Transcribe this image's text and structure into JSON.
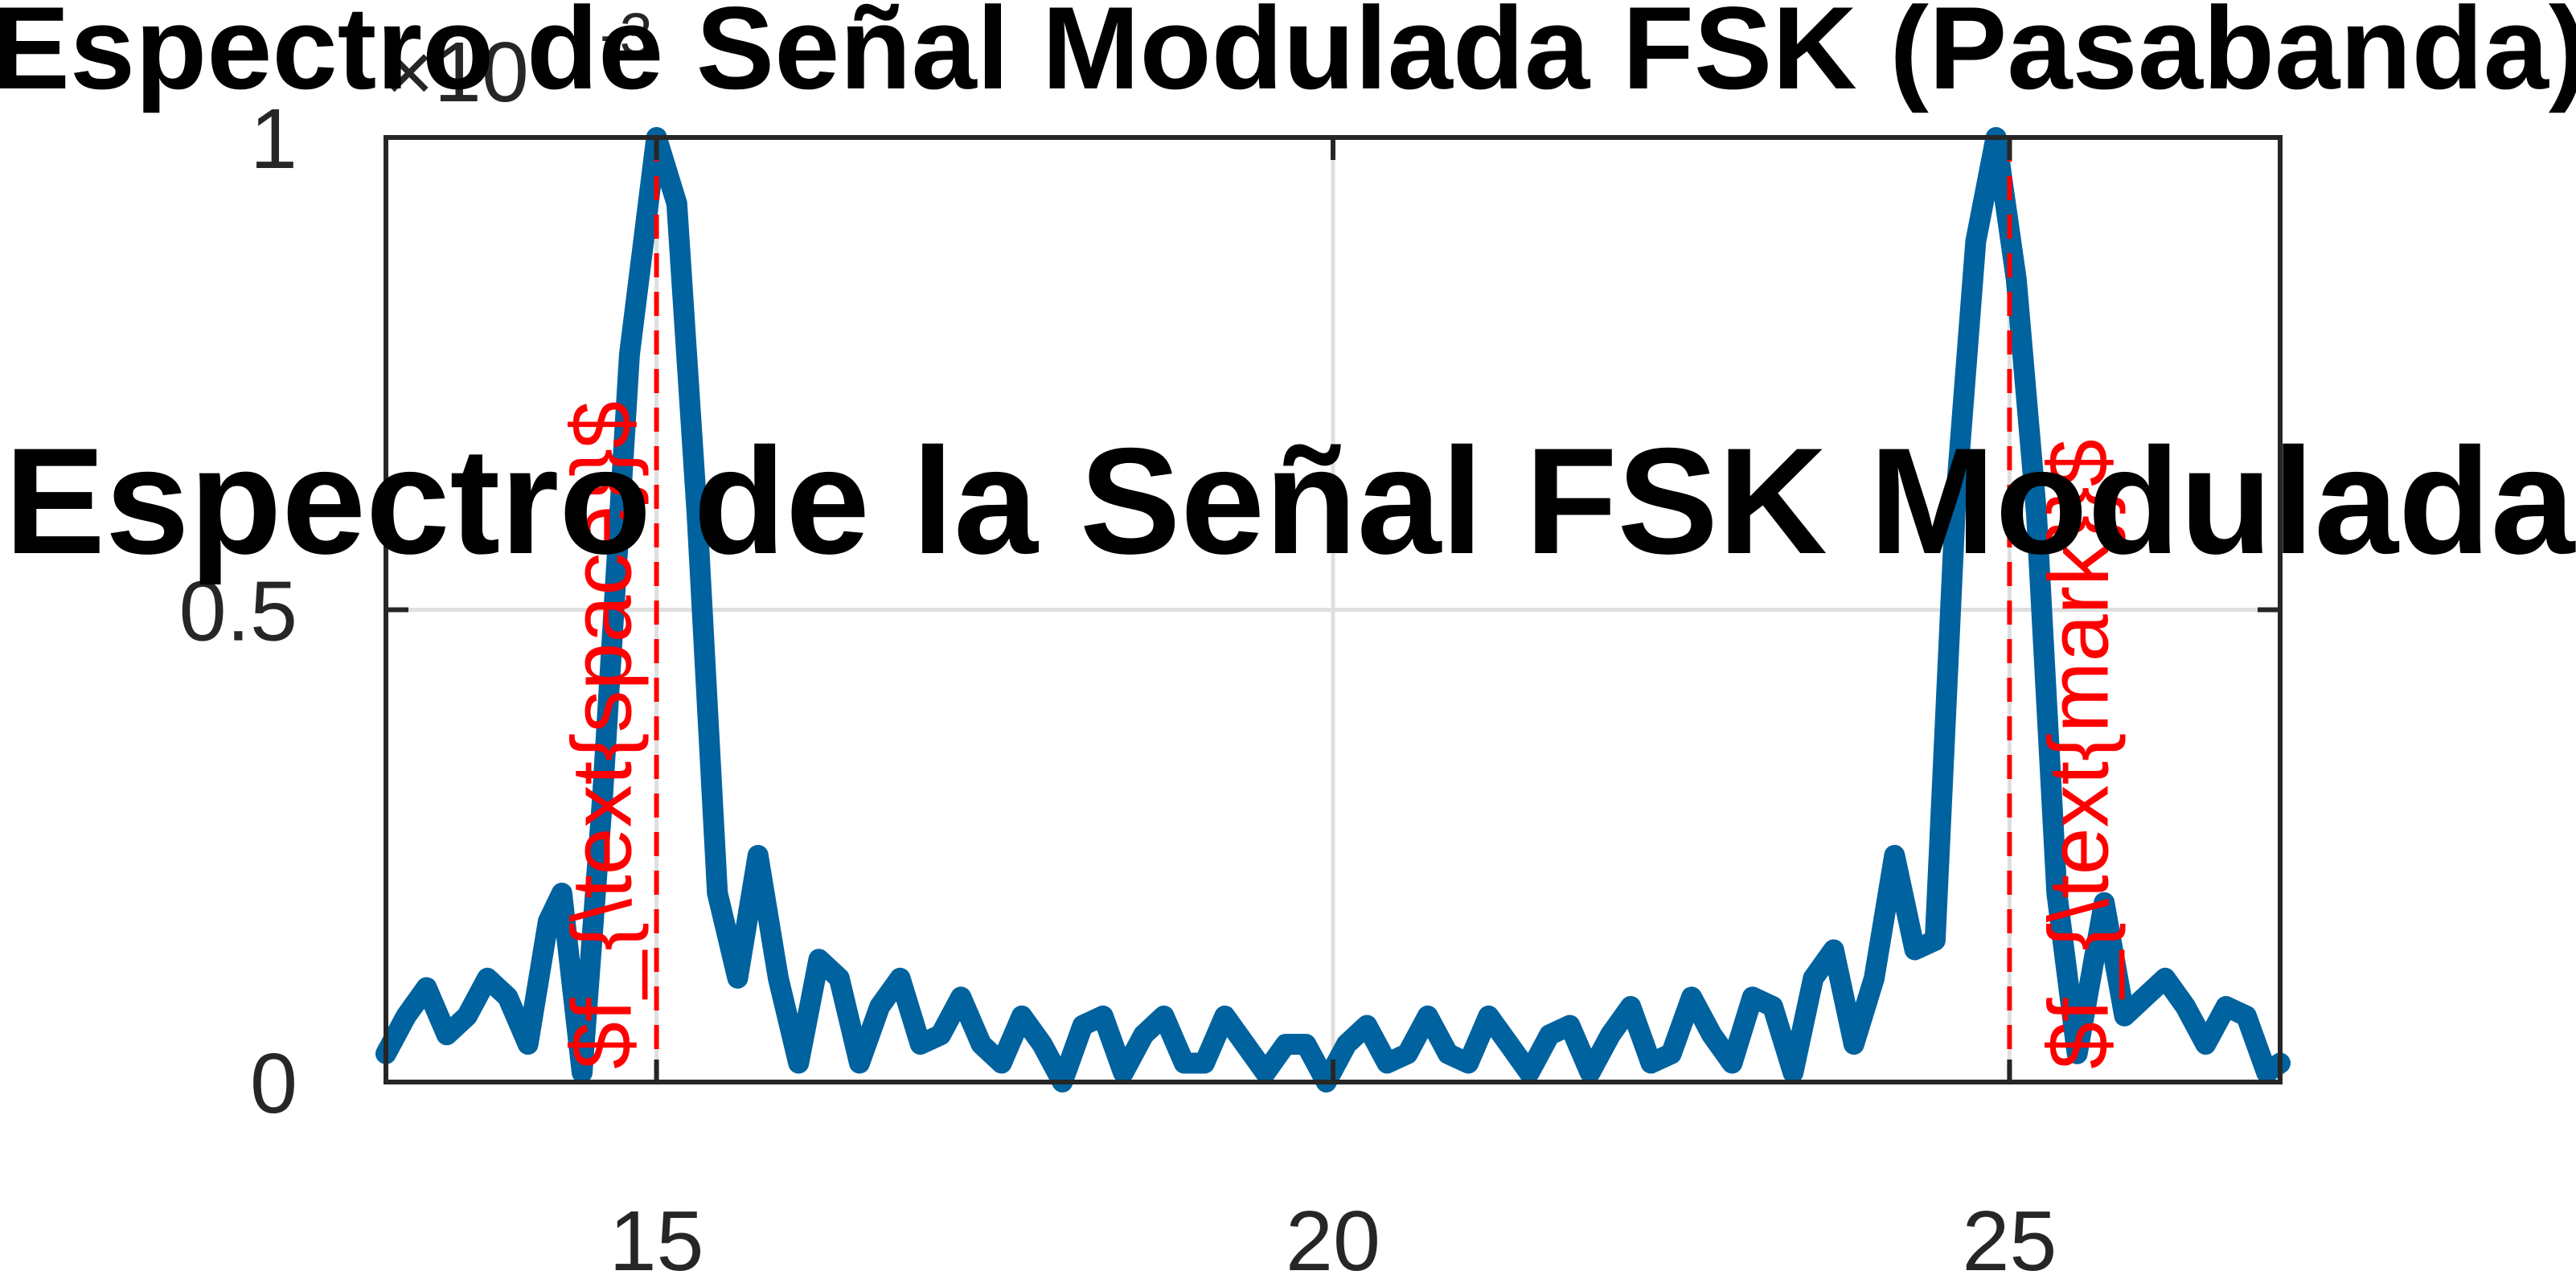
{
  "chart_data": {
    "type": "line",
    "title": "Espectro de Señal Modulada FSK (Pasabanda)",
    "overlay_title": "Espectro de la Señal FSK Modulada",
    "xlabel": "",
    "ylabel": "",
    "xlim": [
      13,
      27
    ],
    "ylim": [
      0,
      0.001
    ],
    "y_exponent_label": "×10",
    "y_exponent_power": "-3",
    "xticks": [
      15,
      20,
      25
    ],
    "xtick_labels": [
      "15",
      "20",
      "25"
    ],
    "yticks": [
      0,
      0.0005,
      0.001
    ],
    "ytick_labels": [
      "0",
      "0.5",
      "1"
    ],
    "grid": true,
    "series": [
      {
        "color": "#00629e",
        "x": [
          13.0,
          13.15,
          13.3,
          13.45,
          13.6,
          13.75,
          13.9,
          14.05,
          14.2,
          14.3,
          14.45,
          14.6,
          14.8,
          15.0,
          15.15,
          15.3,
          15.45,
          15.6,
          15.75,
          15.9,
          16.05,
          16.2,
          16.35,
          16.5,
          16.65,
          16.8,
          16.95,
          17.1,
          17.25,
          17.4,
          17.55,
          17.7,
          17.85,
          18.0,
          18.15,
          18.3,
          18.45,
          18.6,
          18.75,
          18.9,
          19.05,
          19.2,
          19.35,
          19.5,
          19.65,
          19.8,
          19.95,
          20.1,
          20.25,
          20.4,
          20.55,
          20.7,
          20.85,
          21.0,
          21.15,
          21.3,
          21.45,
          21.6,
          21.75,
          21.9,
          22.05,
          22.2,
          22.35,
          22.5,
          22.65,
          22.8,
          22.95,
          23.1,
          23.25,
          23.4,
          23.55,
          23.7,
          23.85,
          24.0,
          24.15,
          24.3,
          24.45,
          24.6,
          24.75,
          24.9,
          25.05,
          25.2,
          25.35,
          25.5,
          25.7,
          25.85,
          26.0,
          26.15,
          26.3,
          26.45,
          26.6,
          26.75,
          26.9,
          27.0
        ],
        "y": [
          3e-05,
          7e-05,
          0.0001,
          5e-05,
          7e-05,
          0.00011,
          9e-05,
          4e-05,
          0.00017,
          0.0002,
          1e-05,
          0.0003,
          0.00077,
          0.001,
          0.00093,
          0.0006,
          0.0002,
          0.00011,
          0.00024,
          0.00011,
          2e-05,
          0.00013,
          0.00011,
          2e-05,
          8e-05,
          0.00011,
          4e-05,
          5e-05,
          9e-05,
          4e-05,
          2e-05,
          7e-05,
          4e-05,
          0.0,
          6e-05,
          7e-05,
          1e-05,
          5e-05,
          7e-05,
          2e-05,
          2e-05,
          7e-05,
          4e-05,
          1e-05,
          4e-05,
          4e-05,
          0.0,
          4e-05,
          6e-05,
          2e-05,
          3e-05,
          7e-05,
          3e-05,
          2e-05,
          7e-05,
          4e-05,
          1e-05,
          5e-05,
          6e-05,
          1e-05,
          5e-05,
          8e-05,
          2e-05,
          3e-05,
          9e-05,
          5e-05,
          2e-05,
          9e-05,
          8e-05,
          1e-05,
          0.00011,
          0.00014,
          4e-05,
          0.00011,
          0.00024,
          0.00014,
          0.00015,
          0.00061,
          0.00089,
          0.001,
          0.00085,
          0.0006,
          0.0002,
          3e-05,
          0.00019,
          7e-05,
          9e-05,
          0.00011,
          8e-05,
          4e-05,
          8e-05,
          7e-05,
          1e-05,
          2e-05
        ]
      }
    ],
    "annotations": [
      {
        "x": 15,
        "label": "$f_{\\text{space}}$",
        "color": "#ff0000"
      },
      {
        "x": 25,
        "label": "$f_{\\text{mark}}$",
        "color": "#ff0000"
      }
    ]
  }
}
